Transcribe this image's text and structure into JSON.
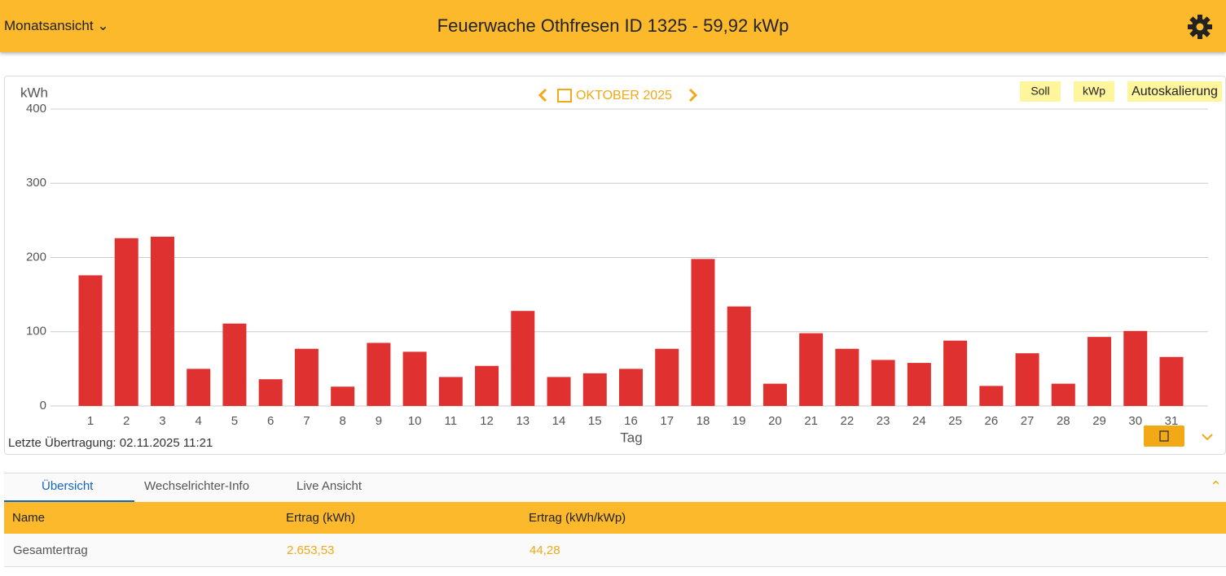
{
  "header": {
    "view": "Monatsansicht",
    "title": "Feuerwache Othfresen ID 1325 - 59,92 kWp"
  },
  "nav": {
    "month": "OKTOBER 2025",
    "buttons": [
      "Soll",
      "kWp",
      "Autoskalierung"
    ]
  },
  "chart_data": {
    "type": "bar",
    "y_label": "kWh",
    "x_label": "Tag",
    "categories": [
      "1",
      "2",
      "3",
      "4",
      "5",
      "6",
      "7",
      "8",
      "9",
      "10",
      "11",
      "12",
      "13",
      "14",
      "15",
      "16",
      "17",
      "18",
      "19",
      "20",
      "21",
      "22",
      "23",
      "24",
      "25",
      "26",
      "27",
      "28",
      "29",
      "30",
      "31"
    ],
    "values": [
      176,
      226,
      228,
      50,
      111,
      36,
      77,
      26,
      85,
      73,
      39,
      54,
      128,
      39,
      44,
      50,
      77,
      198,
      134,
      30,
      98,
      77,
      62,
      58,
      88,
      27,
      71,
      30,
      93,
      101,
      66
    ],
    "color": "#e03131",
    "ylim": [
      0,
      400
    ],
    "yticks": [
      0,
      100,
      200,
      300,
      400
    ],
    "grid": true
  },
  "footer": "Letzte Übertragung: 02.11.2025 11:21",
  "tabs": [
    "Übersicht",
    "Wechselrichter-Info",
    "Live Ansicht"
  ],
  "table": {
    "header": [
      "Name",
      "Ertrag (kWh)",
      "Ertrag (kWh/kWp)"
    ],
    "rows": [
      [
        "Gesamtertrag",
        "2.653,53",
        "44,28"
      ]
    ]
  }
}
